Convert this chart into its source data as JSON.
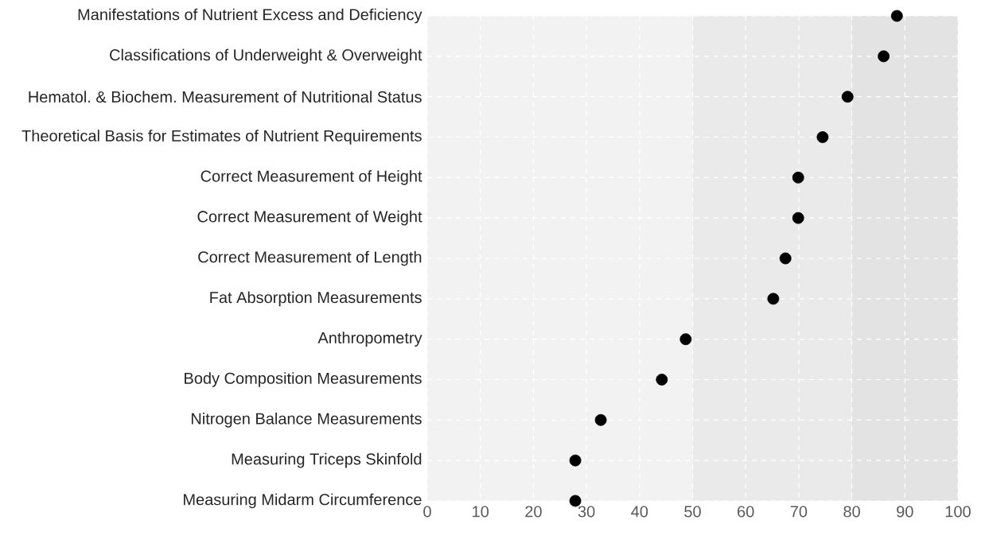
{
  "chart_data": {
    "type": "scatter",
    "orientation": "horizontal",
    "categories": [
      "Manifestations of Nutrient Excess and Deficiency",
      "Classifications of Underweight & Overweight",
      "Hematol. & Biochem. Measurement of Nutritional Status",
      "Theoretical Basis for Estimates of Nutrient Requirements",
      "Correct Measurement of Height",
      "Correct Measurement of Weight",
      "Correct Measurement of Length",
      "Fat Absorption Measurements",
      "Anthropometry",
      "Body Composition Measurements",
      "Nitrogen Balance Measurements",
      "Measuring Triceps Skinfold",
      "Measuring Midarm Circumference"
    ],
    "values": [
      88.5,
      86,
      79.2,
      74.5,
      69.9,
      69.9,
      67.5,
      65.2,
      48.7,
      44.2,
      32.7,
      27.9,
      27.9
    ],
    "color": "#000000",
    "marker": "circle",
    "xlim": [
      0,
      100
    ],
    "xticks": [
      0,
      10,
      20,
      30,
      40,
      50,
      60,
      70,
      80,
      90,
      100
    ],
    "grid": true,
    "bands": [
      {
        "axis": "x",
        "from": 0,
        "to": 50,
        "color": "#f2f2f2"
      },
      {
        "axis": "x",
        "from": 50,
        "to": 80,
        "color": "#eaeaea"
      },
      {
        "axis": "x",
        "from": 80,
        "to": 100,
        "color": "#e3e3e3"
      }
    ]
  }
}
